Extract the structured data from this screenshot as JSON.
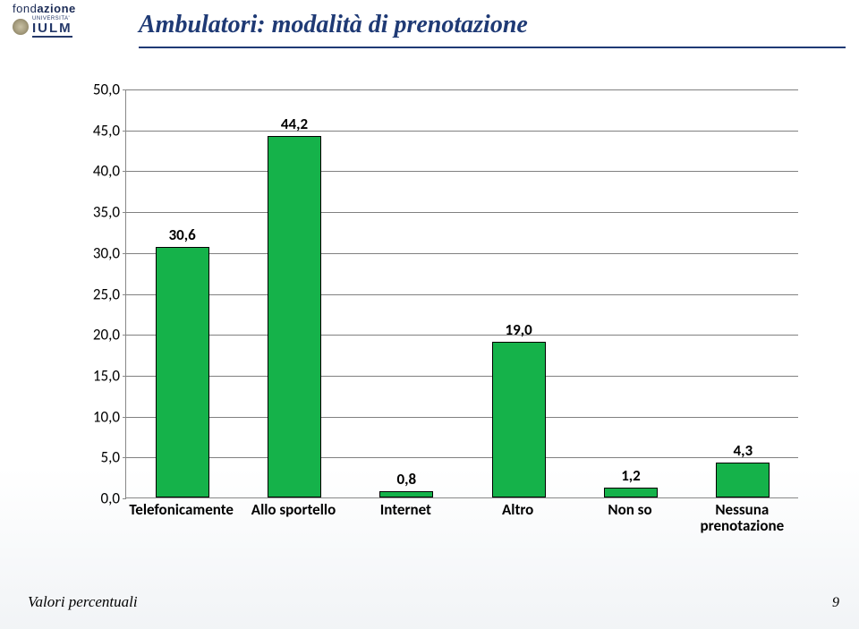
{
  "logo": {
    "top": "fond",
    "top_bold": "azione",
    "small": "UNIVERSITA'",
    "big": "IULM"
  },
  "title": "Ambulatori: modalità di prenotazione",
  "chart": {
    "type": "bar",
    "y_max": 50.0,
    "y_step": 5.0,
    "y_tick_labels": [
      "0,0",
      "5,0",
      "10,0",
      "15,0",
      "20,0",
      "25,0",
      "30,0",
      "35,0",
      "40,0",
      "45,0",
      "50,0"
    ],
    "bar_fill": "#15b24a",
    "bar_border": "#000000",
    "gridline_color": "#808080",
    "value_fontsize": 17,
    "label_fontsize": 17,
    "bars": [
      {
        "label": "Telefonicamente",
        "value_label": "30,6",
        "value": 30.6
      },
      {
        "label": "Allo sportello",
        "value_label": "44,2",
        "value": 44.2
      },
      {
        "label": "Internet",
        "value_label": "0,8",
        "value": 0.8
      },
      {
        "label": "Altro",
        "value_label": "19,0",
        "value": 19.0
      },
      {
        "label": "Non so",
        "value_label": "1,2",
        "value": 1.2
      },
      {
        "label": "Nessuna prenotazione",
        "value_label": "4,3",
        "value": 4.3
      }
    ]
  },
  "footer": {
    "note": "Valori percentuali",
    "page_number": "9"
  }
}
